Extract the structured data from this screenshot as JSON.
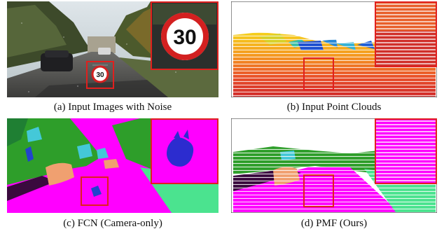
{
  "figure": {
    "panels": [
      {
        "id": "a",
        "caption": "(a) Input Images with Noise",
        "sign_text": "30"
      },
      {
        "id": "b",
        "caption": "(b) Input Point Clouds"
      },
      {
        "id": "c",
        "caption": "(c) FCN (Camera-only)"
      },
      {
        "id": "d",
        "caption": "(d) PMF (Ours)"
      }
    ],
    "colors": {
      "highlight_box": "#e0201e",
      "road": "#ff00ff",
      "vegetation": "#2e9e2a",
      "sidewalk": "#4be38f",
      "car": "#f0a070",
      "pole": "#2244cc",
      "building": "#44c8d8",
      "parking": "#3a0a3e"
    }
  }
}
